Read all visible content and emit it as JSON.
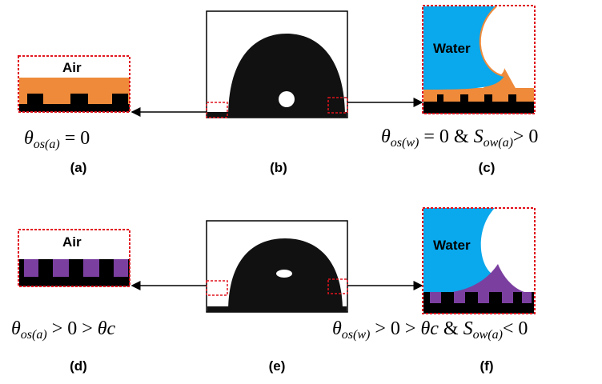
{
  "panels": [
    {
      "label": "(a)",
      "medium": "Air"
    },
    {
      "label": "(b)"
    },
    {
      "label": "(c)",
      "medium": "Water"
    },
    {
      "label": "(d)",
      "medium": "Air"
    },
    {
      "label": "(e)"
    },
    {
      "label": "(f)",
      "medium": "Water"
    }
  ],
  "equations": {
    "a": [
      {
        "italic": "θ"
      },
      {
        "sub": "os(a)"
      },
      {
        "text": " = 0"
      }
    ],
    "c": [
      {
        "italic": "θ"
      },
      {
        "sub": "os(w)"
      },
      {
        "text": " = 0 & "
      },
      {
        "italic": "S"
      },
      {
        "sub": "ow(a)"
      },
      {
        "text": "> 0"
      }
    ],
    "d": [
      {
        "italic": "θ"
      },
      {
        "sub": "os(a)"
      },
      {
        "text": " > 0 > "
      },
      {
        "italic": "θc"
      }
    ],
    "f": [
      {
        "italic": "θ"
      },
      {
        "sub": "os(w)"
      },
      {
        "text": " > 0 > "
      },
      {
        "italic": "θc"
      },
      {
        "text": "  & "
      },
      {
        "italic": "S"
      },
      {
        "sub": "ow(a)"
      },
      {
        "text": "< 0"
      }
    ]
  }
}
